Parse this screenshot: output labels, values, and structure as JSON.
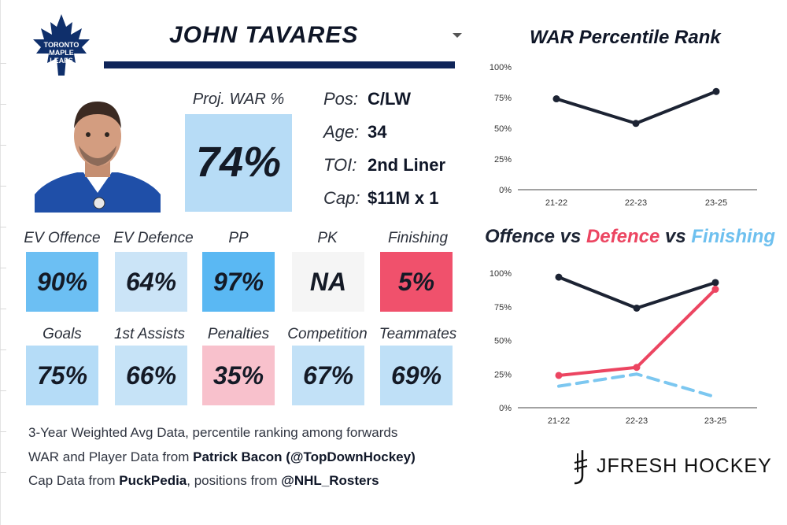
{
  "header": {
    "player_name": "JOHN TAVARES",
    "team_logo_text": [
      "TORONTO",
      "MAPLE",
      "LEAFS"
    ]
  },
  "projected": {
    "label": "Proj. WAR %",
    "value": "74%"
  },
  "info": [
    {
      "label": "Pos:",
      "value": "C/LW"
    },
    {
      "label": "Age:",
      "value": "34"
    },
    {
      "label": "TOI:",
      "value": "2nd Liner"
    },
    {
      "label": "Cap:",
      "value": "$11M x 1"
    }
  ],
  "tiles_row1": [
    {
      "label": "EV Offence",
      "value": "90%",
      "color": "#6cbff3"
    },
    {
      "label": "EV Defence",
      "value": "64%",
      "color": "#cbe4f7"
    },
    {
      "label": "PP",
      "value": "97%",
      "color": "#5ab8f3"
    },
    {
      "label": "PK",
      "value": "NA",
      "color": "#f5f5f5"
    },
    {
      "label": "Finishing",
      "value": "5%",
      "color": "#f0516c"
    }
  ],
  "tiles_row2": [
    {
      "label": "Goals",
      "value": "75%",
      "color": "#b5dcf7"
    },
    {
      "label": "1st Assists",
      "value": "66%",
      "color": "#c6e3f7"
    },
    {
      "label": "Penalties",
      "value": "35%",
      "color": "#f8c1cc"
    },
    {
      "label": "Competition",
      "value": "67%",
      "color": "#c2e1f7"
    },
    {
      "label": "Teammates",
      "value": "69%",
      "color": "#bfe0f7"
    }
  ],
  "footer": {
    "line1": "3-Year Weighted Avg Data, percentile ranking among forwards",
    "line2_prefix": "WAR and Player Data from ",
    "line2_bold": "Patrick Bacon (@TopDownHockey)",
    "line3_prefix": "Cap Data from ",
    "line3_bold1": "PuckPedia",
    "line3_mid": ", positions from ",
    "line3_bold2": "@NHL_Rosters"
  },
  "branding": {
    "text": "JFRESH HOCKEY"
  },
  "chart1_title": "WAR Percentile Rank",
  "chart2_title": {
    "part1": "Offence",
    "vs1": " vs ",
    "part2": "Defence",
    "vs2": " vs ",
    "part3": "Finishing"
  },
  "chart_data": [
    {
      "type": "line",
      "title": "WAR Percentile Rank",
      "categories": [
        "21-22",
        "22-23",
        "23-25"
      ],
      "yticks": [
        "0%",
        "25%",
        "50%",
        "75%",
        "100%"
      ],
      "ylim": [
        0,
        100
      ],
      "series": [
        {
          "name": "WAR",
          "values": [
            74,
            54,
            80
          ],
          "color": "#1c2333",
          "dashed": false
        }
      ]
    },
    {
      "type": "line",
      "title": "Offence vs Defence vs Finishing",
      "categories": [
        "21-22",
        "22-23",
        "23-25"
      ],
      "yticks": [
        "0%",
        "25%",
        "50%",
        "75%",
        "100%"
      ],
      "ylim": [
        0,
        100
      ],
      "series": [
        {
          "name": "Offence",
          "values": [
            97,
            74,
            93
          ],
          "color": "#1c2333",
          "dashed": false
        },
        {
          "name": "Defence",
          "values": [
            24,
            30,
            88
          ],
          "color": "#ec4561",
          "dashed": false
        },
        {
          "name": "Finishing",
          "values": [
            16,
            25,
            8
          ],
          "color": "#7cc7f0",
          "dashed": true
        }
      ]
    }
  ]
}
